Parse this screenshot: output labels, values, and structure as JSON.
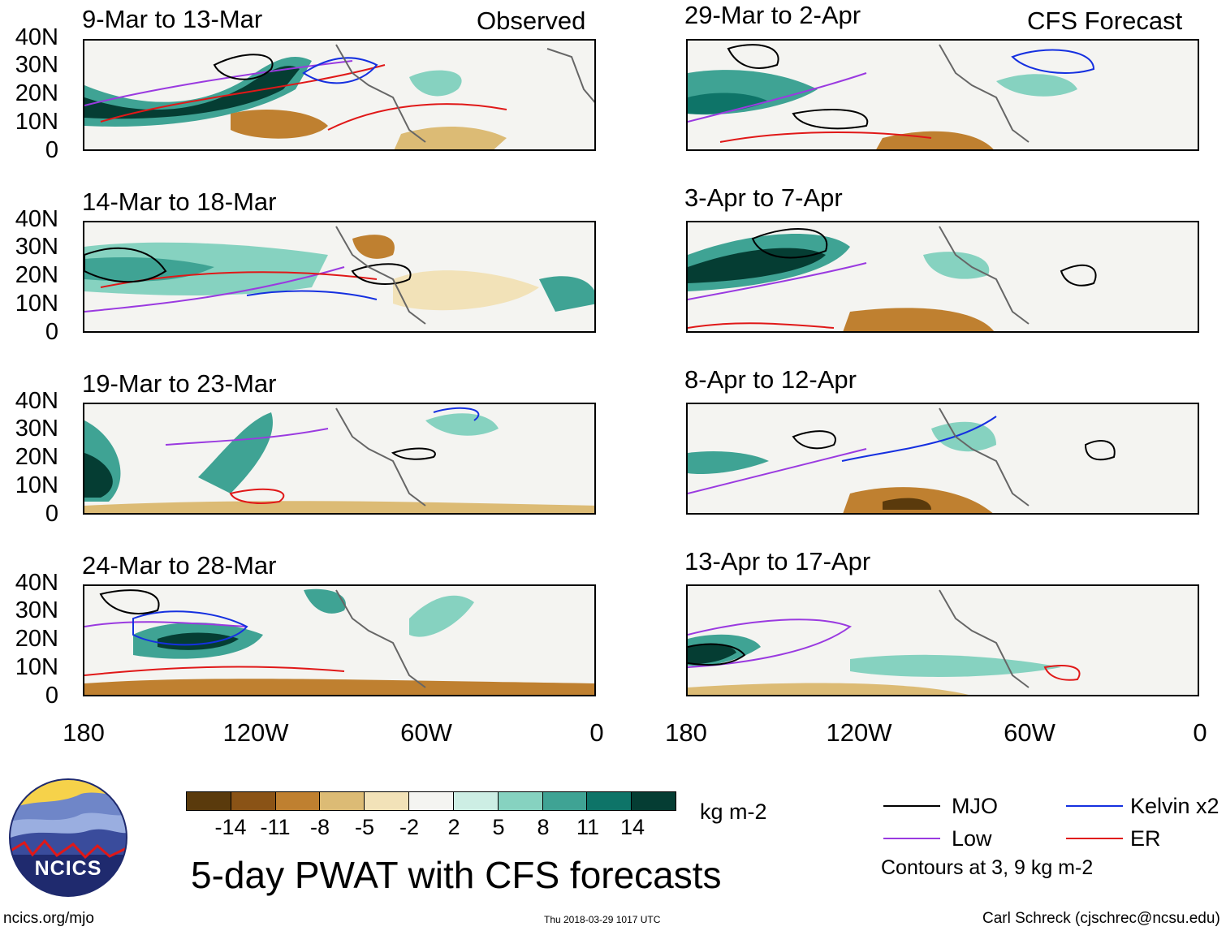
{
  "headers": {
    "left": "Observed",
    "right": "CFS Forecast"
  },
  "panels_left": [
    {
      "title": "9-Mar to 13-Mar"
    },
    {
      "title": "14-Mar to 18-Mar"
    },
    {
      "title": "19-Mar to 23-Mar"
    },
    {
      "title": "24-Mar to 28-Mar"
    }
  ],
  "panels_right": [
    {
      "title": "29-Mar to 2-Apr"
    },
    {
      "title": "3-Apr to 7-Apr"
    },
    {
      "title": "8-Apr to 12-Apr"
    },
    {
      "title": "13-Apr to 17-Apr"
    }
  ],
  "axes": {
    "y_labels": [
      "40N",
      "30N",
      "20N",
      "10N",
      "0"
    ],
    "x_labels": [
      "180",
      "120W",
      "60W",
      "0"
    ]
  },
  "colorbar": {
    "colors": [
      "#5a3a0c",
      "#8a5316",
      "#bf8030",
      "#dcbb75",
      "#f2e2b8",
      "#f4f4f1",
      "#cdeee4",
      "#86d2c0",
      "#3fa394",
      "#0e7468",
      "#053d33"
    ],
    "labels": [
      "-14",
      "-11",
      "-8",
      "-5",
      "-2",
      "2",
      "5",
      "8",
      "11",
      "14"
    ],
    "units": "kg m-2"
  },
  "title": "5-day PWAT with CFS forecasts",
  "legend": {
    "items": [
      {
        "label": "MJO",
        "color": "#000000"
      },
      {
        "label": "Kelvin x2",
        "color": "#1530e0"
      },
      {
        "label": "Low",
        "color": "#9a3ae0"
      },
      {
        "label": "ER",
        "color": "#e01818"
      }
    ],
    "note": "Contours at 3, 9 kg m-2"
  },
  "logo": {
    "text": "NCICS"
  },
  "footer": {
    "left": "ncics.org/mjo",
    "center": "Thu 2018-03-29 1017 UTC",
    "right": "Carl Schreck (cjschrec@ncsu.edu)"
  }
}
